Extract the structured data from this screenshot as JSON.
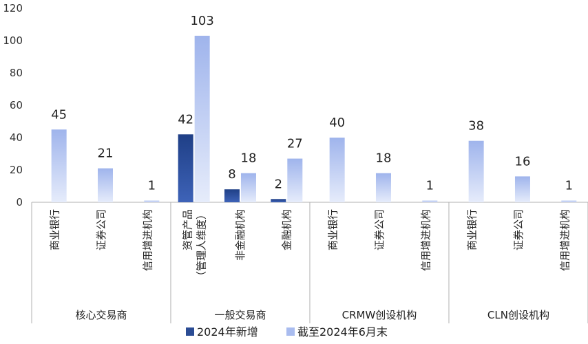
{
  "chart_data": {
    "type": "bar",
    "ylim": [
      0,
      120
    ],
    "yticks": [
      0,
      20,
      40,
      60,
      80,
      100,
      120
    ],
    "grid": false,
    "legend_position": "bottom",
    "colors": {
      "series_new": "#2b4c94",
      "series_total": "#a9bcef",
      "axis": "#b0b0b0"
    },
    "groups": [
      {
        "label": "核心交易商",
        "categories": [
          "商业银行",
          "证券公司",
          "信用增进机构"
        ]
      },
      {
        "label": "一般交易商",
        "categories": [
          "资管产品\n（管理人维度）",
          "非金融机构",
          "金融机构"
        ]
      },
      {
        "label": "CRMW创设机构",
        "categories": [
          "商业银行",
          "证券公司",
          "信用增进机构"
        ]
      },
      {
        "label": "CLN创设机构",
        "categories": [
          "商业银行",
          "证券公司",
          "信用增进机构"
        ]
      }
    ],
    "series": [
      {
        "name": "2024年新增",
        "values": [
          null,
          null,
          null,
          42,
          8,
          2,
          null,
          null,
          null,
          null,
          null,
          null
        ]
      },
      {
        "name": "截至2024年6月末",
        "values": [
          45,
          21,
          1,
          103,
          18,
          27,
          40,
          18,
          1,
          38,
          16,
          1
        ]
      }
    ]
  }
}
